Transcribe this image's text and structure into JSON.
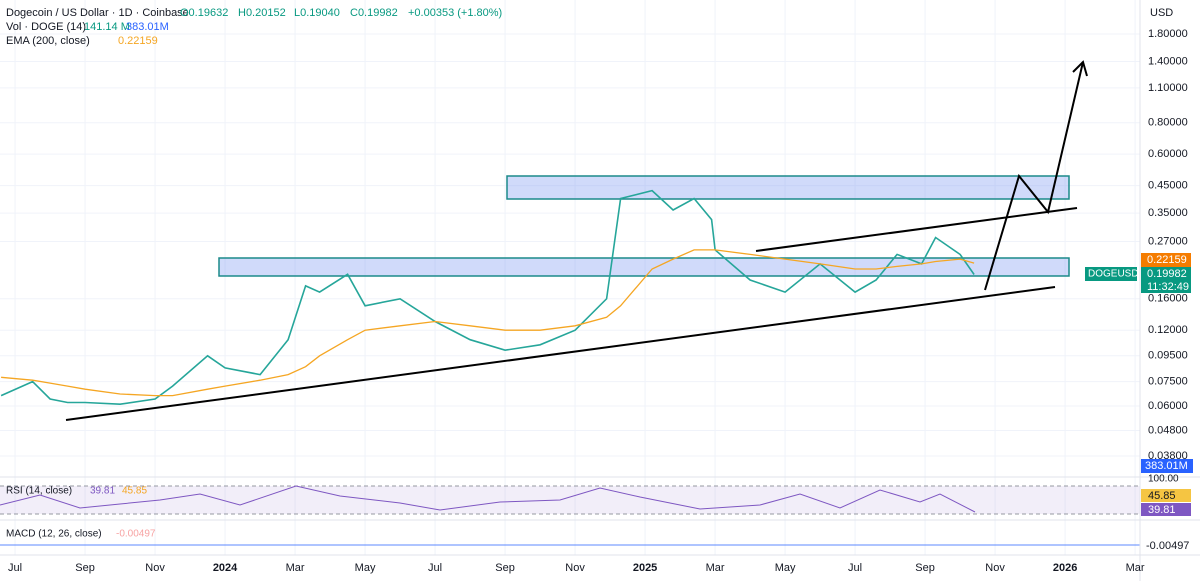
{
  "header": {
    "symbol": "Dogecoin / US Dollar · 1D · Coinbase",
    "open": "O0.19632",
    "high": "H0.20152",
    "low": "L0.19040",
    "close": "C0.19982",
    "change": "+0.00353 (+1.80%)",
    "vol": "Vol · DOGE (14)",
    "vol1": "141.14 M",
    "vol2": "383.01M",
    "ema": "0.22159"
  },
  "axis": {
    "currency": "USD",
    "ema_tag": "0.22159",
    "sym_tag": "DOGEUSD",
    "price_tag": "0.19982",
    "timer": "11:32:49",
    "vol_tag": "383.01M",
    "rsi_top": "100.00",
    "rsi_a": "45.85",
    "rsi_b": "39.81",
    "macd_tag": "-0.00497"
  },
  "rsi": {
    "title": "RSI (14, close)",
    "v1": "39.81",
    "v2": "45.85"
  },
  "macd": {
    "title": "MACD (12, 26, close)",
    "v1": "-0.00497"
  },
  "chart_data": {
    "type": "line",
    "x": [
      -0.4,
      0.5,
      1,
      1.5,
      2,
      3,
      4,
      4.5,
      5.5,
      6,
      7,
      7.8,
      8.3,
      8.7,
      9.5,
      10,
      11,
      12,
      13,
      14,
      15,
      16,
      16.9,
      17.3,
      18.2,
      18.8,
      19.4,
      19.9,
      20,
      21,
      22,
      23,
      24,
      24.6,
      25.2,
      25.9,
      26.3,
      27,
      27.4
    ],
    "series": [
      {
        "name": "DOGEUSD",
        "color": "#26a69a",
        "values": [
          0.066,
          0.075,
          0.064,
          0.062,
          0.062,
          0.061,
          0.064,
          0.072,
          0.095,
          0.085,
          0.08,
          0.11,
          0.18,
          0.17,
          0.2,
          0.15,
          0.16,
          0.13,
          0.11,
          0.1,
          0.105,
          0.12,
          0.16,
          0.4,
          0.43,
          0.36,
          0.4,
          0.33,
          0.25,
          0.19,
          0.17,
          0.22,
          0.17,
          0.19,
          0.24,
          0.22,
          0.28,
          0.24,
          0.1998
        ]
      },
      {
        "name": "EMA (200, close)",
        "color": "#f5a623",
        "values": [
          0.078,
          0.076,
          0.074,
          0.072,
          0.07,
          0.067,
          0.066,
          0.066,
          0.07,
          0.072,
          0.076,
          0.08,
          0.086,
          0.095,
          0.11,
          0.12,
          0.125,
          0.13,
          0.125,
          0.12,
          0.12,
          0.125,
          0.135,
          0.15,
          0.21,
          0.23,
          0.25,
          0.25,
          0.25,
          0.24,
          0.23,
          0.22,
          0.21,
          0.21,
          0.215,
          0.22,
          0.225,
          0.23,
          0.2216
        ]
      }
    ],
    "ylim": [
      0.038,
      1.8
    ],
    "log": true,
    "grid": true,
    "yticks": [
      {
        "value": 1.8,
        "label": "1.80000"
      },
      {
        "value": 1.4,
        "label": "1.40000"
      },
      {
        "value": 1.1,
        "label": "1.10000"
      },
      {
        "value": 0.8,
        "label": "0.80000"
      },
      {
        "value": 0.6,
        "label": "0.60000"
      },
      {
        "value": 0.45,
        "label": "0.45000"
      },
      {
        "value": 0.35,
        "label": "0.35000"
      },
      {
        "value": 0.27,
        "label": "0.27000"
      },
      {
        "value": 0.16,
        "label": "0.16000"
      },
      {
        "value": 0.12,
        "label": "0.12000"
      },
      {
        "value": 0.095,
        "label": "0.09500"
      },
      {
        "value": 0.075,
        "label": "0.07500"
      },
      {
        "value": 0.06,
        "label": "0.06000"
      },
      {
        "value": 0.048,
        "label": "0.04800"
      },
      {
        "value": 0.038,
        "label": "0.03800"
      }
    ],
    "xlim": [
      -0.43,
      32.14
    ],
    "xticks": [
      {
        "value": 0,
        "label": "Jul"
      },
      {
        "value": 2,
        "label": "Sep"
      },
      {
        "value": 4,
        "label": "Nov"
      },
      {
        "value": 6,
        "label": "2024"
      },
      {
        "value": 8,
        "label": "Mar"
      },
      {
        "value": 10,
        "label": "May"
      },
      {
        "value": 12,
        "label": "Jul"
      },
      {
        "value": 14,
        "label": "Sep"
      },
      {
        "value": 16,
        "label": "Nov"
      },
      {
        "value": 18,
        "label": "2025"
      },
      {
        "value": 20,
        "label": "Mar"
      },
      {
        "value": 22,
        "label": "May"
      },
      {
        "value": 24,
        "label": "Jul"
      },
      {
        "value": 26,
        "label": "Sep"
      },
      {
        "value": 28,
        "label": "Nov"
      },
      {
        "value": 30,
        "label": "2026"
      },
      {
        "value": 32,
        "label": "Mar"
      }
    ]
  }
}
